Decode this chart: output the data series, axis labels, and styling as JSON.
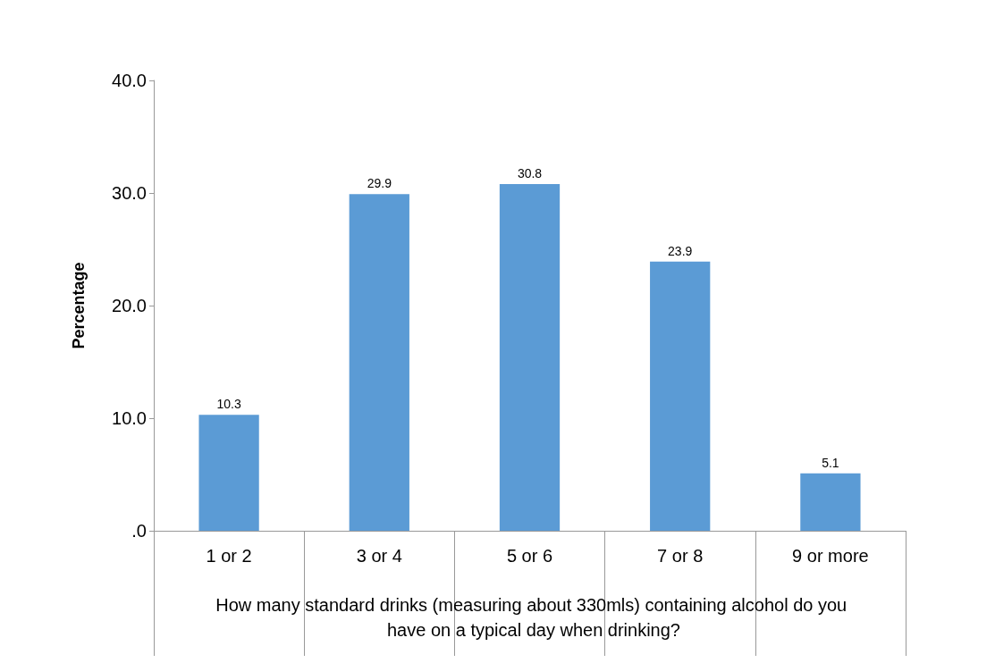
{
  "chart_data": {
    "type": "bar",
    "ylabel": "Percentage",
    "xlabel": "How many standard drinks (measuring about 330mls) containing alcohol do you have on a typical day when drinking?",
    "categories": [
      "1 or 2",
      "3 or 4",
      "5 or 6",
      "7 or 8",
      "9 or more"
    ],
    "values": [
      10.3,
      29.9,
      30.8,
      23.9,
      5.1
    ],
    "color": "#5b9bd5",
    "ylim": [
      0,
      40
    ],
    "yticks": [
      {
        "value": 0,
        "label": ".0"
      },
      {
        "value": 10,
        "label": "10.0"
      },
      {
        "value": 20,
        "label": "20.0"
      },
      {
        "value": 30,
        "label": "30.0"
      },
      {
        "value": 40,
        "label": "40.0"
      }
    ],
    "data_labels": true,
    "grid": false
  }
}
